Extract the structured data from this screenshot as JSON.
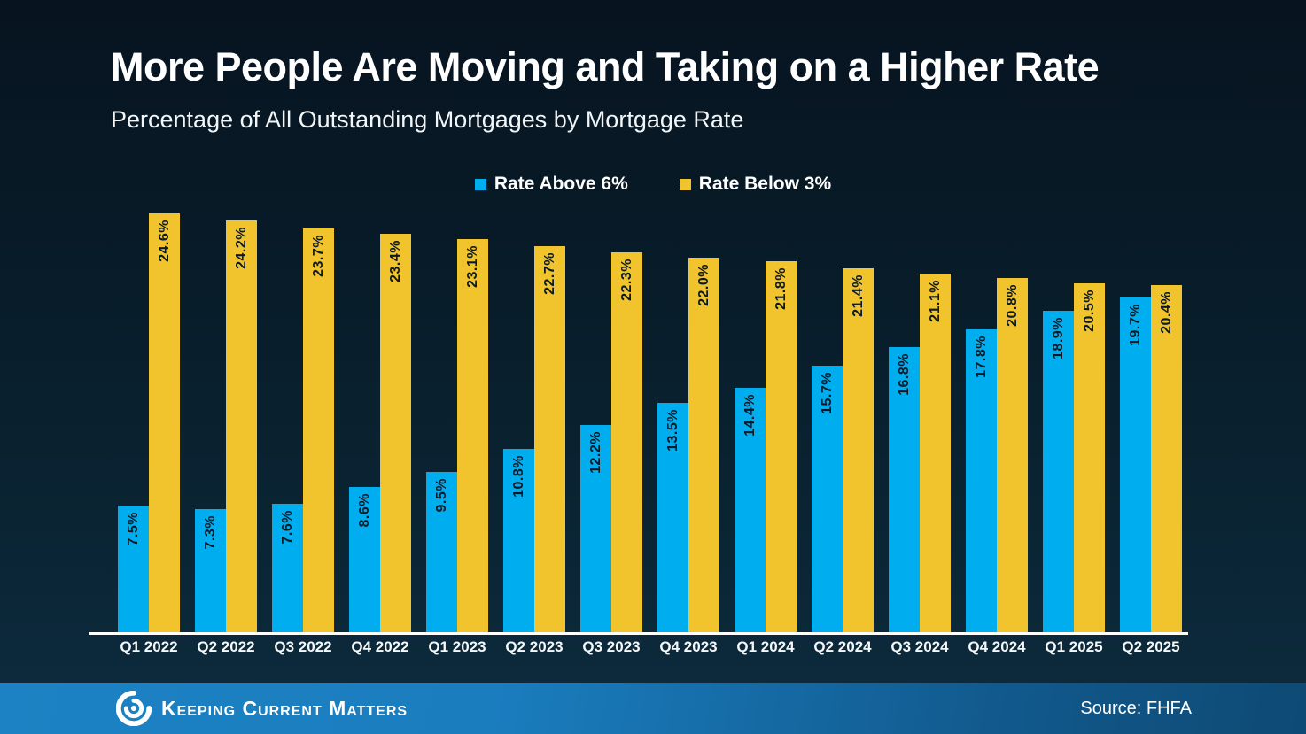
{
  "title": "More People Are Moving and Taking on a Higher Rate",
  "subtitle": "Percentage of All Outstanding Mortgages by Mortgage Rate",
  "legend": {
    "items": [
      {
        "label": "Rate Above 6%",
        "color": "#00AEEF"
      },
      {
        "label": "Rate Below 3%",
        "color": "#F1C32C"
      }
    ]
  },
  "chart_data": {
    "type": "bar",
    "title": "More People Are Moving and Taking on a Higher Rate",
    "subtitle": "Percentage of All Outstanding Mortgages by Mortgage Rate",
    "categories": [
      "Q1 2022",
      "Q2 2022",
      "Q3 2022",
      "Q4 2022",
      "Q1 2023",
      "Q2 2023",
      "Q3 2023",
      "Q4 2023",
      "Q1 2024",
      "Q2 2024",
      "Q3 2024",
      "Q4 2024",
      "Q1 2025",
      "Q2 2025"
    ],
    "series": [
      {
        "name": "Rate Above 6%",
        "color": "#00AEEF",
        "values": [
          7.5,
          7.3,
          7.6,
          8.6,
          9.5,
          10.8,
          12.2,
          13.5,
          14.4,
          15.7,
          16.8,
          17.8,
          18.9,
          19.7
        ],
        "labels": [
          "7.5%",
          "7.3%",
          "7.6%",
          "8.6%",
          "9.5%",
          "10.8%",
          "12.2%",
          "13.5%",
          "14.4%",
          "15.7%",
          "16.8%",
          "17.8%",
          "18.9%",
          "19.7%"
        ]
      },
      {
        "name": "Rate Below 3%",
        "color": "#F1C32C",
        "values": [
          24.6,
          24.2,
          23.7,
          23.4,
          23.1,
          22.7,
          22.3,
          22.0,
          21.8,
          21.4,
          21.1,
          20.8,
          20.5,
          20.4
        ],
        "labels": [
          "24.6%",
          "24.2%",
          "23.7%",
          "23.4%",
          "23.1%",
          "22.7%",
          "22.3%",
          "22.0%",
          "21.8%",
          "21.4%",
          "21.1%",
          "20.8%",
          "20.5%",
          "20.4%"
        ]
      }
    ],
    "xlabel": "",
    "ylabel": "",
    "ylim": [
      0,
      24.6
    ],
    "grid": false,
    "legend_position": "top",
    "value_labels": "rotated -90deg, dark text inside top of each bar"
  },
  "footer": {
    "brand": "Keeping Current Matters",
    "source": "Source: FHFA"
  },
  "colors": {
    "background_top": "#071420",
    "background_bottom": "#0c2a3c",
    "bar_blue": "#00AEEF",
    "bar_yellow": "#F1C32C",
    "value_label_text": "#0b1a26",
    "axis_line": "#ffffff",
    "text": "#ffffff",
    "footer_gradient_left": "#1c82c3",
    "footer_gradient_right": "#0e4a74"
  }
}
